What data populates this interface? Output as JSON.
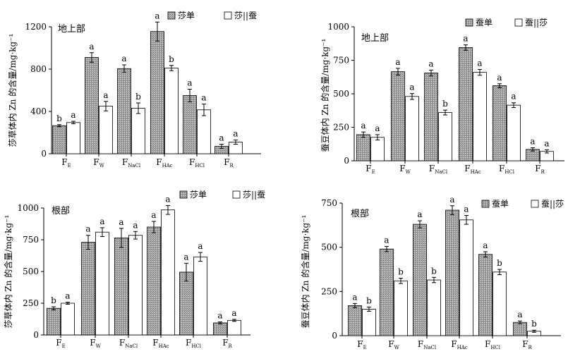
{
  "chart_data": [
    {
      "type": "bar",
      "panel_label": "地上部",
      "ylabel": "莎草体内 Zn 的含量/mg·kg⁻¹",
      "categories": [
        {
          "base": "F",
          "sub": "E"
        },
        {
          "base": "F",
          "sub": "W"
        },
        {
          "base": "F",
          "sub": "NaCl"
        },
        {
          "base": "F",
          "sub": "HAc"
        },
        {
          "base": "F",
          "sub": "HCl"
        },
        {
          "base": "F",
          "sub": "R"
        }
      ],
      "ylim": [
        0,
        1200
      ],
      "yticks": [
        0,
        400,
        800,
        1200
      ],
      "legend_position": "top-right",
      "series": [
        {
          "name": "莎单",
          "pattern": "hatched",
          "values": [
            265,
            910,
            805,
            1155,
            550,
            70
          ],
          "errors": [
            10,
            45,
            35,
            90,
            60,
            20
          ],
          "sig": [
            "b",
            "a",
            "a",
            "a",
            "a",
            "a"
          ]
        },
        {
          "name": "莎||蚕",
          "pattern": "white",
          "values": [
            295,
            450,
            430,
            810,
            415,
            110
          ],
          "errors": [
            12,
            45,
            50,
            25,
            55,
            20
          ],
          "sig": [
            "a",
            "a",
            "b",
            "b",
            "a",
            "a"
          ]
        }
      ]
    },
    {
      "type": "bar",
      "panel_label": "地上部",
      "ylabel": "蚕豆体内 Zn 的含量/mg·kg⁻¹",
      "categories": [
        {
          "base": "F",
          "sub": "E"
        },
        {
          "base": "F",
          "sub": "W"
        },
        {
          "base": "F",
          "sub": "NaCl"
        },
        {
          "base": "F",
          "sub": "HAc"
        },
        {
          "base": "F",
          "sub": "HCl"
        },
        {
          "base": "F",
          "sub": "R"
        }
      ],
      "ylim": [
        0,
        1000
      ],
      "yticks": [
        0,
        250,
        500,
        750,
        1000
      ],
      "legend_position": "top-right",
      "series": [
        {
          "name": "蚕单",
          "pattern": "hatched",
          "values": [
            195,
            665,
            655,
            845,
            560,
            85
          ],
          "errors": [
            20,
            25,
            22,
            20,
            15,
            12
          ],
          "sig": [
            "a",
            "a",
            "a",
            "a",
            "a",
            "a"
          ]
        },
        {
          "name": "蚕||莎",
          "pattern": "white",
          "values": [
            175,
            480,
            360,
            660,
            415,
            70
          ],
          "errors": [
            20,
            22,
            18,
            22,
            18,
            12
          ],
          "sig": [
            "a",
            "a",
            "b",
            "a",
            "a",
            "a"
          ]
        }
      ]
    },
    {
      "type": "bar",
      "panel_label": "根部",
      "ylabel": "莎草体内 Zn 的含量/mg·kg⁻¹",
      "categories": [
        {
          "base": "F",
          "sub": "E"
        },
        {
          "base": "F",
          "sub": "W"
        },
        {
          "base": "F",
          "sub": "NaCl"
        },
        {
          "base": "F",
          "sub": "HAc"
        },
        {
          "base": "F",
          "sub": "HCl"
        },
        {
          "base": "F",
          "sub": "R"
        }
      ],
      "ylim": [
        0,
        1000
      ],
      "yticks": [
        0,
        250,
        500,
        750,
        1000
      ],
      "legend_position": "top-right",
      "series": [
        {
          "name": "莎单",
          "pattern": "hatched",
          "values": [
            210,
            730,
            765,
            850,
            495,
            95
          ],
          "errors": [
            12,
            55,
            75,
            45,
            70,
            8
          ],
          "sig": [
            "b",
            "a",
            "a",
            "a",
            "a",
            "a"
          ]
        },
        {
          "name": "莎||蚕",
          "pattern": "white",
          "values": [
            250,
            810,
            785,
            985,
            615,
            115
          ],
          "errors": [
            8,
            35,
            30,
            35,
            35,
            8
          ],
          "sig": [
            "a",
            "a",
            "a",
            "a",
            "a",
            "a"
          ]
        }
      ]
    },
    {
      "type": "bar",
      "panel_label": "根部",
      "ylabel": "蚕豆体内 Zn 的含量/mg·kg⁻¹",
      "categories": [
        {
          "base": "F",
          "sub": "E"
        },
        {
          "base": "F",
          "sub": "W"
        },
        {
          "base": "F",
          "sub": "NaCl"
        },
        {
          "base": "F",
          "sub": "HAc"
        },
        {
          "base": "F",
          "sub": "HCl"
        },
        {
          "base": "F",
          "sub": "R"
        }
      ],
      "ylim": [
        0,
        750
      ],
      "yticks": [
        0,
        250,
        500,
        750
      ],
      "legend_position": "top-right",
      "series": [
        {
          "name": "蚕单",
          "pattern": "hatched",
          "values": [
            170,
            490,
            630,
            710,
            460,
            75
          ],
          "errors": [
            12,
            15,
            20,
            25,
            15,
            8
          ],
          "sig": [
            "a",
            "a",
            "a",
            "a",
            "a",
            "a"
          ]
        },
        {
          "name": "蚕||莎",
          "pattern": "white",
          "values": [
            150,
            310,
            315,
            655,
            360,
            25
          ],
          "errors": [
            12,
            15,
            15,
            25,
            15,
            6
          ],
          "sig": [
            "b",
            "b",
            "b",
            "a",
            "b",
            "b"
          ]
        }
      ]
    }
  ]
}
